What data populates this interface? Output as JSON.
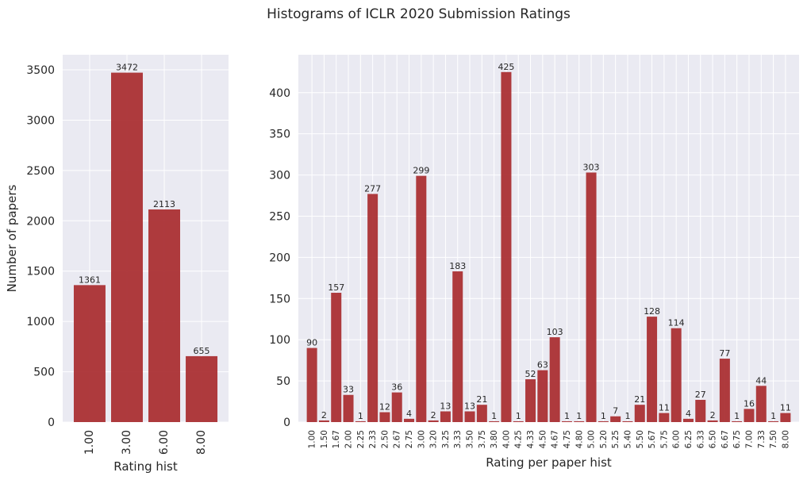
{
  "figure": {
    "suptitle": "Histograms of ICLR 2020 Submission Ratings",
    "bar_color": "#a82a2e",
    "background_color": "#eaeaf2",
    "grid_color": "#ffffff"
  },
  "chart_data": [
    {
      "type": "bar",
      "title": "",
      "xlabel": "Rating hist",
      "ylabel": "Number of papers",
      "categories": [
        "1.00",
        "3.00",
        "6.00",
        "8.00"
      ],
      "values": [
        1361,
        3472,
        2113,
        655
      ],
      "ylim": [
        0,
        3650
      ],
      "yticks": [
        0,
        500,
        1000,
        1500,
        2000,
        2500,
        3000,
        3500
      ],
      "grid": true,
      "data_labels": true
    },
    {
      "type": "bar",
      "title": "",
      "xlabel": "Rating per paper hist",
      "ylabel": "",
      "categories": [
        "1.00",
        "1.50",
        "1.67",
        "2.00",
        "2.25",
        "2.33",
        "2.50",
        "2.67",
        "2.75",
        "3.00",
        "3.20",
        "3.25",
        "3.33",
        "3.50",
        "3.75",
        "3.80",
        "4.00",
        "4.25",
        "4.33",
        "4.50",
        "4.67",
        "4.75",
        "4.80",
        "5.00",
        "5.20",
        "5.25",
        "5.40",
        "5.50",
        "5.67",
        "5.75",
        "6.00",
        "6.25",
        "6.33",
        "6.50",
        "6.67",
        "6.75",
        "7.00",
        "7.33",
        "7.50",
        "8.00"
      ],
      "values": [
        90,
        2,
        157,
        33,
        1,
        277,
        12,
        36,
        4,
        299,
        2,
        13,
        183,
        13,
        21,
        1,
        425,
        1,
        52,
        63,
        103,
        1,
        1,
        303,
        1,
        7,
        1,
        21,
        128,
        11,
        114,
        4,
        27,
        2,
        77,
        1,
        16,
        44,
        1,
        11
      ],
      "ylim": [
        0,
        446
      ],
      "yticks": [
        0,
        50,
        100,
        150,
        200,
        250,
        300,
        350,
        400
      ],
      "grid": true,
      "data_labels": true
    }
  ]
}
